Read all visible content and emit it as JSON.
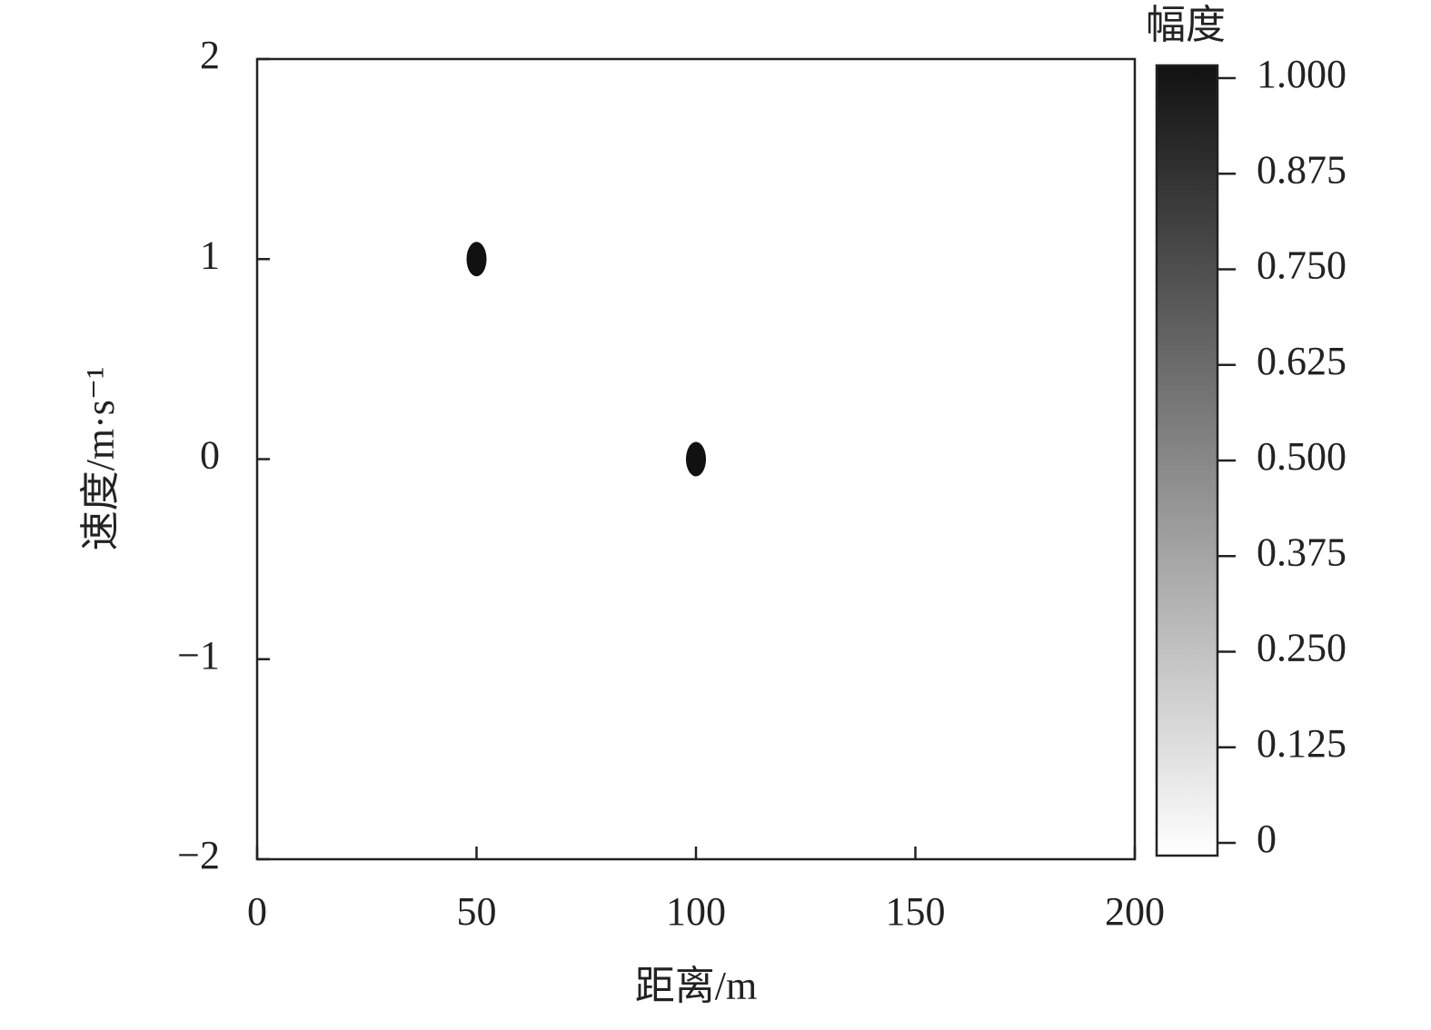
{
  "chart_data": {
    "type": "scatter",
    "x_label": "距离/m",
    "y_label": "速度/m·s⁻¹",
    "series": [
      {
        "x": [
          50,
          100
        ],
        "values": [
          1,
          0
        ],
        "intensity": [
          1,
          1
        ]
      }
    ],
    "xlim": [
      0,
      200
    ],
    "xticks": [
      0,
      50,
      100,
      150,
      200
    ],
    "ylim": [
      -2,
      2
    ],
    "yticks": [
      {
        "value": -2,
        "label": "−2"
      },
      {
        "value": -1,
        "label": "−1"
      },
      0,
      1,
      2
    ],
    "colorbar": {
      "title": "幅度",
      "lim": [
        0,
        1
      ],
      "colormap": [
        "#ffffff",
        "#111111"
      ],
      "ticks": [
        0,
        {
          "value": 0.125,
          "label": "0.125"
        },
        {
          "value": 0.25,
          "label": "0.250"
        },
        {
          "value": 0.375,
          "label": "0.375"
        },
        {
          "value": 0.5,
          "label": "0.500"
        },
        {
          "value": 0.625,
          "label": "0.625"
        },
        {
          "value": 0.75,
          "label": "0.750"
        },
        {
          "value": 0.875,
          "label": "0.875"
        },
        {
          "value": 1,
          "label": "1.000"
        }
      ]
    }
  }
}
